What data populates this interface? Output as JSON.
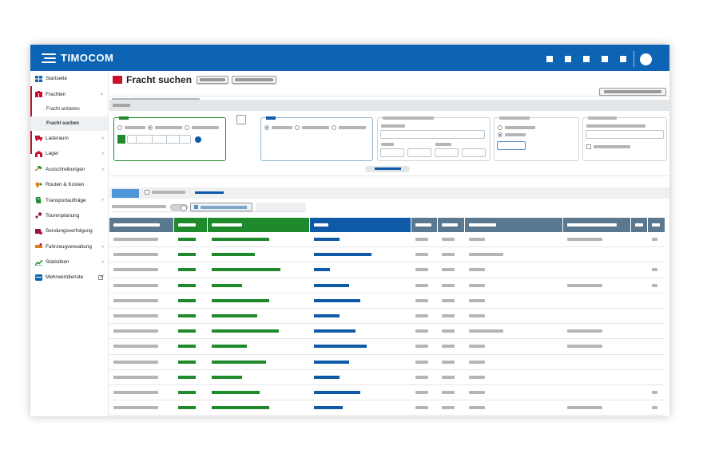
{
  "app": {
    "logo_text": "TIMOCOM",
    "brand_color": "#0e64b4",
    "header_icons": [
      "square-icon",
      "square-icon",
      "square-icon",
      "square-icon",
      "square-icon",
      "avatar"
    ]
  },
  "sidebar": {
    "items": [
      {
        "label": "Startseite",
        "icon": "home-grid-icon",
        "color": "#0e64b4"
      },
      {
        "label": "Frachten",
        "icon": "freight-icon",
        "color": "#c8102e",
        "expanded": true,
        "children": [
          "Fracht anbieten",
          "Fracht suchen"
        ],
        "active_child": "Fracht suchen"
      },
      {
        "label": "Laderaum",
        "icon": "truck-icon",
        "color": "#c8102e",
        "has_children": true
      },
      {
        "label": "Lager",
        "icon": "warehouse-icon",
        "color": "#c8102e",
        "has_children": true
      },
      {
        "label": "Ausschreibungen",
        "icon": "gavel-icon",
        "color": "#1e8a2c",
        "has_children": true
      },
      {
        "label": "Routen & Kosten",
        "icon": "route-pin-icon",
        "color": "#e07b1a"
      },
      {
        "label": "Transportaufträge",
        "icon": "document-icon",
        "color": "#1e8a2c",
        "has_children": true
      },
      {
        "label": "Tourenplanung",
        "icon": "tour-icon",
        "color": "#8b1a3a"
      },
      {
        "label": "Sendungsverfolgung",
        "icon": "tracking-icon",
        "color": "#8b1a3a"
      },
      {
        "label": "Fahrzeugverwaltung",
        "icon": "vehicle-icon",
        "color": "#e07b1a",
        "has_children": true
      },
      {
        "label": "Statistiken",
        "icon": "chart-icon",
        "color": "#1e8a2c",
        "has_children": true
      },
      {
        "label": "Mehrwertdienste",
        "icon": "services-icon",
        "color": "#0e64b4",
        "external": true
      }
    ]
  },
  "main": {
    "page_title": "Fracht suchen",
    "title_icon": "freight-icon"
  },
  "colors": {
    "green": "#1e8a2c",
    "blue": "#0e5aa7",
    "header_gray": "#5a788f",
    "placeholder_gray": "#b5b5b5"
  }
}
